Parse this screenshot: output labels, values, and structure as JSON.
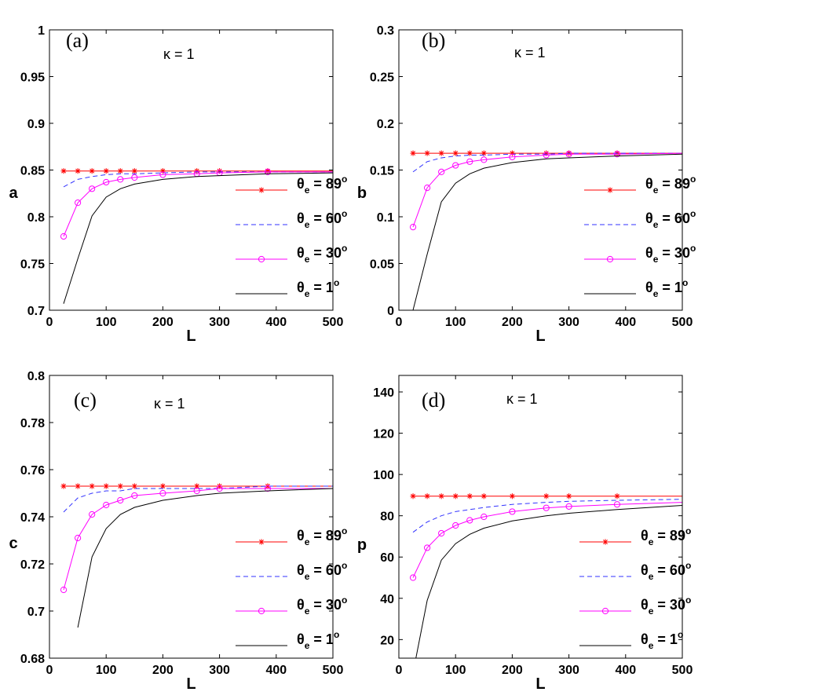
{
  "figure": {
    "panel_count": 4
  },
  "chart_data": [
    {
      "type": "line",
      "panel_label": "(a)",
      "annotation": "κ = 1",
      "xlabel": "L",
      "ylabel": "a",
      "xlim": [
        0,
        500
      ],
      "ylim": [
        0.7,
        1
      ],
      "xticks": [
        0,
        100,
        200,
        300,
        400,
        500
      ],
      "yticks": [
        0.7,
        0.75,
        0.8,
        0.85,
        0.9,
        0.95,
        1
      ],
      "ytick_labels": [
        "0.7",
        "0.75",
        "0.8",
        "0.85",
        "0.9",
        "0.95",
        "1"
      ],
      "legend_position": "right",
      "series": [
        {
          "name": "θe = 89°",
          "symbol": "θ",
          "sub": "e",
          "value_text": " = 89",
          "sup": "o",
          "color": "#ff0000",
          "dash": "",
          "marker": "star",
          "x": [
            25,
            50,
            75,
            100,
            125,
            150,
            200,
            260,
            300,
            385,
            500
          ],
          "y": [
            0.849,
            0.849,
            0.849,
            0.849,
            0.849,
            0.849,
            0.849,
            0.849,
            0.849,
            0.849,
            0.849
          ],
          "marker_x": [
            25,
            50,
            75,
            100,
            125,
            150,
            200,
            260,
            300,
            385
          ]
        },
        {
          "name": "θe = 60°",
          "symbol": "θ",
          "sub": "e",
          "value_text": " = 60",
          "sup": "o",
          "color": "#3333ff",
          "dash": "6,4",
          "marker": "none",
          "x": [
            25,
            50,
            75,
            100,
            125,
            150,
            200,
            260,
            300,
            385,
            500
          ],
          "y": [
            0.832,
            0.84,
            0.843,
            0.845,
            0.846,
            0.846,
            0.847,
            0.848,
            0.848,
            0.848,
            0.848
          ],
          "marker_x": []
        },
        {
          "name": "θe = 30°",
          "symbol": "θ",
          "sub": "e",
          "value_text": " = 30",
          "sup": "o",
          "color": "#ff00ff",
          "dash": "",
          "marker": "circle",
          "x": [
            25,
            50,
            75,
            100,
            125,
            150,
            200,
            260,
            300,
            385,
            500
          ],
          "y": [
            0.779,
            0.815,
            0.83,
            0.837,
            0.84,
            0.842,
            0.845,
            0.846,
            0.847,
            0.848,
            0.848
          ],
          "marker_x": [
            25,
            50,
            75,
            100,
            125,
            150,
            200,
            260,
            300,
            385
          ]
        },
        {
          "name": "θe = 1°",
          "symbol": "θ",
          "sub": "e",
          "value_text": " = 1",
          "sup": "o",
          "color": "#000000",
          "dash": "",
          "marker": "none",
          "x": [
            25,
            50,
            75,
            100,
            125,
            150,
            200,
            260,
            300,
            385,
            500
          ],
          "y": [
            0.707,
            0.755,
            0.801,
            0.821,
            0.83,
            0.835,
            0.84,
            0.843,
            0.844,
            0.846,
            0.847
          ],
          "marker_x": []
        }
      ]
    },
    {
      "type": "line",
      "panel_label": "(b)",
      "annotation": "κ = 1",
      "xlabel": "L",
      "ylabel": "b",
      "xlim": [
        0,
        500
      ],
      "ylim": [
        0,
        0.3
      ],
      "xticks": [
        0,
        100,
        200,
        300,
        400,
        500
      ],
      "yticks": [
        0,
        0.05,
        0.1,
        0.15,
        0.2,
        0.25,
        0.3
      ],
      "ytick_labels": [
        "0",
        "0.05",
        "0.1",
        "0.15",
        "0.2",
        "0.25",
        "0.3"
      ],
      "legend_position": "right",
      "series": [
        {
          "name": "θe = 89°",
          "symbol": "θ",
          "sub": "e",
          "value_text": " = 89",
          "sup": "o",
          "color": "#ff0000",
          "dash": "",
          "marker": "star",
          "x": [
            25,
            50,
            75,
            100,
            125,
            150,
            200,
            260,
            300,
            385,
            500
          ],
          "y": [
            0.168,
            0.168,
            0.168,
            0.168,
            0.168,
            0.168,
            0.168,
            0.168,
            0.168,
            0.168,
            0.168
          ],
          "marker_x": [
            25,
            50,
            75,
            100,
            125,
            150,
            200,
            260,
            300,
            385
          ]
        },
        {
          "name": "θe = 60°",
          "symbol": "θ",
          "sub": "e",
          "value_text": " = 60",
          "sup": "o",
          "color": "#3333ff",
          "dash": "6,4",
          "marker": "none",
          "x": [
            25,
            50,
            75,
            100,
            125,
            150,
            200,
            260,
            300,
            385,
            500
          ],
          "y": [
            0.148,
            0.159,
            0.163,
            0.165,
            0.166,
            0.166,
            0.167,
            0.167,
            0.168,
            0.168,
            0.168
          ],
          "marker_x": []
        },
        {
          "name": "θe = 30°",
          "symbol": "θ",
          "sub": "e",
          "value_text": " = 30",
          "sup": "o",
          "color": "#ff00ff",
          "dash": "",
          "marker": "circle",
          "x": [
            25,
            50,
            75,
            100,
            125,
            150,
            200,
            260,
            300,
            385,
            500
          ],
          "y": [
            0.089,
            0.131,
            0.148,
            0.155,
            0.159,
            0.161,
            0.164,
            0.166,
            0.167,
            0.167,
            0.168
          ],
          "marker_x": [
            25,
            50,
            75,
            100,
            125,
            150,
            200,
            260,
            300,
            385
          ]
        },
        {
          "name": "θe = 1°",
          "symbol": "θ",
          "sub": "e",
          "value_text": " = 1",
          "sup": "o",
          "color": "#000000",
          "dash": "",
          "marker": "none",
          "x": [
            25,
            50,
            75,
            100,
            125,
            150,
            200,
            260,
            300,
            385,
            500
          ],
          "y": [
            0.0,
            0.06,
            0.116,
            0.136,
            0.146,
            0.152,
            0.158,
            0.162,
            0.163,
            0.165,
            0.167
          ],
          "marker_x": []
        }
      ]
    },
    {
      "type": "line",
      "panel_label": "(c)",
      "annotation": "κ = 1",
      "xlabel": "L",
      "ylabel": "c",
      "xlim": [
        0,
        500
      ],
      "ylim": [
        0.68,
        0.8
      ],
      "xticks": [
        0,
        100,
        200,
        300,
        400,
        500
      ],
      "yticks": [
        0.68,
        0.7,
        0.72,
        0.74,
        0.76,
        0.78,
        0.8
      ],
      "ytick_labels": [
        "0.68",
        "0.7",
        "0.72",
        "0.74",
        "0.76",
        "0.78",
        "0.8"
      ],
      "legend_position": "right",
      "series": [
        {
          "name": "θe = 89°",
          "symbol": "θ",
          "sub": "e",
          "value_text": " = 89",
          "sup": "o",
          "color": "#ff0000",
          "dash": "",
          "marker": "star",
          "x": [
            25,
            50,
            75,
            100,
            125,
            150,
            200,
            260,
            300,
            385,
            500
          ],
          "y": [
            0.753,
            0.753,
            0.753,
            0.753,
            0.753,
            0.753,
            0.753,
            0.753,
            0.753,
            0.753,
            0.753
          ],
          "marker_x": [
            25,
            50,
            75,
            100,
            125,
            150,
            200,
            260,
            300,
            385
          ]
        },
        {
          "name": "θe = 60°",
          "symbol": "θ",
          "sub": "e",
          "value_text": " = 60",
          "sup": "o",
          "color": "#3333ff",
          "dash": "6,4",
          "marker": "none",
          "x": [
            25,
            50,
            75,
            100,
            125,
            150,
            200,
            260,
            300,
            385,
            500
          ],
          "y": [
            0.742,
            0.748,
            0.75,
            0.751,
            0.751,
            0.752,
            0.752,
            0.752,
            0.752,
            0.753,
            0.753
          ],
          "marker_x": []
        },
        {
          "name": "θe = 30°",
          "symbol": "θ",
          "sub": "e",
          "value_text": " = 30",
          "sup": "o",
          "color": "#ff00ff",
          "dash": "",
          "marker": "circle",
          "x": [
            25,
            50,
            75,
            100,
            125,
            150,
            200,
            260,
            300,
            385,
            500
          ],
          "y": [
            0.709,
            0.731,
            0.741,
            0.745,
            0.747,
            0.749,
            0.75,
            0.751,
            0.752,
            0.752,
            0.752
          ],
          "marker_x": [
            25,
            50,
            75,
            100,
            125,
            150,
            200,
            260,
            300,
            385
          ]
        },
        {
          "name": "θe = 1°",
          "symbol": "θ",
          "sub": "e",
          "value_text": " = 1",
          "sup": "o",
          "color": "#000000",
          "dash": "",
          "marker": "none",
          "x": [
            50,
            75,
            100,
            125,
            150,
            200,
            260,
            300,
            385,
            500
          ],
          "y": [
            0.693,
            0.723,
            0.735,
            0.741,
            0.744,
            0.747,
            0.749,
            0.75,
            0.751,
            0.752
          ],
          "marker_x": []
        }
      ]
    },
    {
      "type": "line",
      "panel_label": "(d)",
      "annotation": "κ = 1",
      "xlabel": "L",
      "ylabel": "p",
      "xlim": [
        0,
        500
      ],
      "ylim": [
        11,
        148
      ],
      "xticks": [
        0,
        100,
        200,
        300,
        400,
        500
      ],
      "yticks": [
        20,
        40,
        60,
        80,
        100,
        120,
        140
      ],
      "ytick_labels": [
        "20",
        "40",
        "60",
        "80",
        "100",
        "120",
        "140"
      ],
      "legend_position": "right",
      "series": [
        {
          "name": "θe = 89°",
          "symbol": "θ",
          "sub": "e",
          "value_text": " = 89",
          "sup": "o",
          "color": "#ff0000",
          "dash": "",
          "marker": "star",
          "x": [
            25,
            50,
            75,
            100,
            125,
            150,
            200,
            260,
            300,
            385,
            500
          ],
          "y": [
            89.5,
            89.5,
            89.5,
            89.5,
            89.5,
            89.5,
            89.5,
            89.5,
            89.5,
            89.5,
            89.5
          ],
          "marker_x": [
            25,
            50,
            75,
            100,
            125,
            150,
            200,
            260,
            300,
            385
          ]
        },
        {
          "name": "θe = 60°",
          "symbol": "θ",
          "sub": "e",
          "value_text": " = 60",
          "sup": "o",
          "color": "#3333ff",
          "dash": "6,4",
          "marker": "none",
          "x": [
            25,
            50,
            75,
            100,
            125,
            150,
            200,
            260,
            300,
            385,
            500
          ],
          "y": [
            72,
            77,
            80,
            82,
            83,
            84,
            85.5,
            86.5,
            87,
            87.5,
            88
          ],
          "marker_x": []
        },
        {
          "name": "θe = 30°",
          "symbol": "θ",
          "sub": "e",
          "value_text": " = 30",
          "sup": "o",
          "color": "#ff00ff",
          "dash": "",
          "marker": "circle",
          "x": [
            25,
            50,
            75,
            100,
            125,
            150,
            200,
            260,
            300,
            385,
            500
          ],
          "y": [
            50,
            64.5,
            71.5,
            75.3,
            77.8,
            79.5,
            82,
            83.8,
            84.5,
            85.5,
            86.5
          ],
          "marker_x": [
            25,
            50,
            75,
            100,
            125,
            150,
            200,
            260,
            300,
            385
          ]
        },
        {
          "name": "θe = 1°",
          "symbol": "θ",
          "sub": "e",
          "value_text": " = 1",
          "sup": "o",
          "color": "#000000",
          "dash": "",
          "marker": "none",
          "x": [
            30,
            50,
            75,
            100,
            125,
            150,
            200,
            260,
            300,
            385,
            500
          ],
          "y": [
            11,
            39,
            58.5,
            66.5,
            71,
            74,
            77.5,
            80,
            81.2,
            83,
            85
          ],
          "marker_x": []
        }
      ]
    }
  ]
}
